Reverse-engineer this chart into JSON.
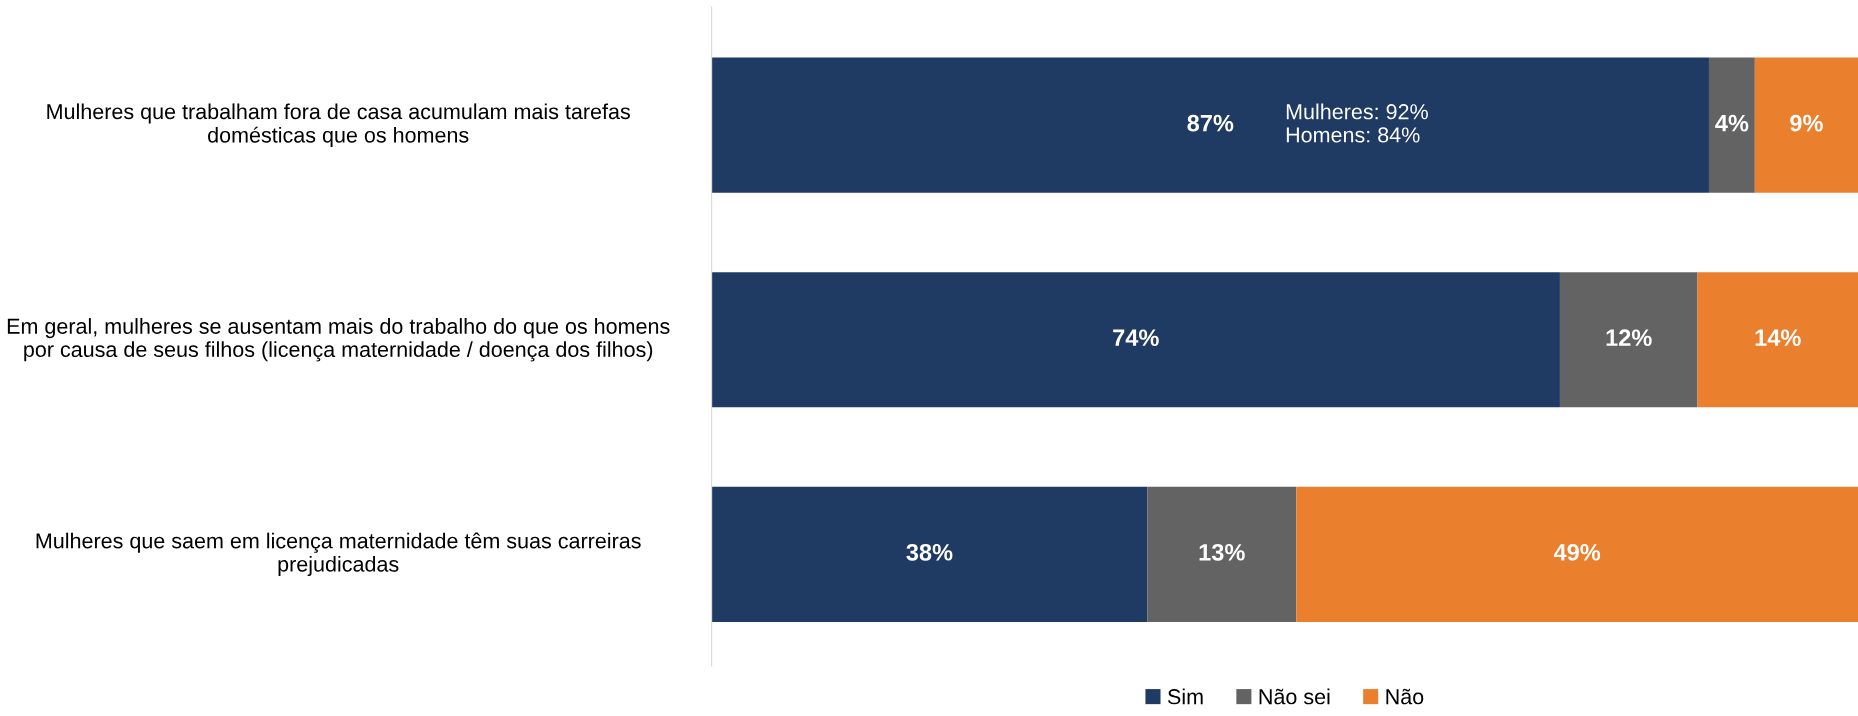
{
  "chart_data": {
    "type": "bar",
    "orientation": "horizontal",
    "stacked": true,
    "categories": [
      "Mulheres que trabalham fora de casa acumulam mais tarefas domésticas que os homens",
      "Em geral, mulheres se ausentam mais do trabalho do que os homens por causa de seus filhos (licença maternidade / doença dos filhos)",
      "Mulheres que saem em licença maternidade têm suas carreiras prejudicadas"
    ],
    "series": [
      {
        "name": "Sim",
        "color": "#1f3b63",
        "values": [
          87,
          74,
          38
        ],
        "value_labels": [
          "87%",
          "74%",
          "38%"
        ]
      },
      {
        "name": "Não sei",
        "color": "#636363",
        "values": [
          4,
          12,
          13
        ],
        "value_labels": [
          "4%",
          "12%",
          "13%"
        ]
      },
      {
        "name": "Não",
        "color": "#ea7f2e",
        "values": [
          9,
          14,
          49
        ],
        "value_labels": [
          "9%",
          "14%",
          "49%"
        ]
      }
    ],
    "tick_labels": "y",
    "legend": "bottom",
    "grid": false,
    "annotations": [
      "Mulheres: 92%\nHomens: 84%"
    ]
  }
}
